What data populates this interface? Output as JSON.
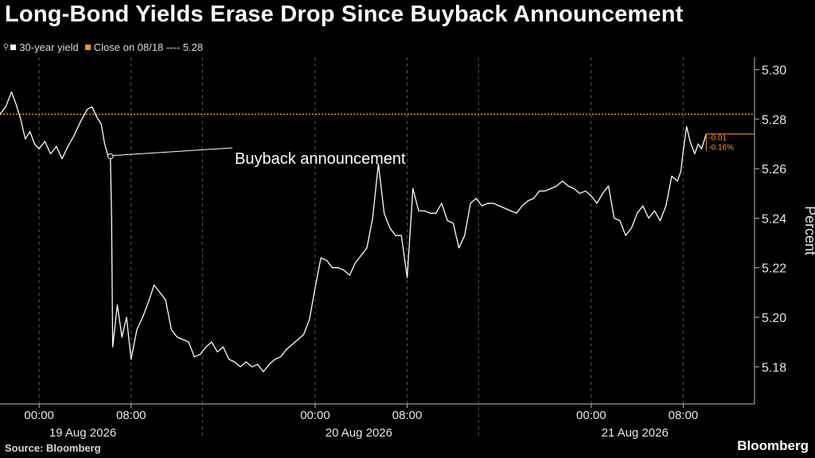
{
  "title": "Long-Bond Yields Erase Drop Since Buyback Announcement",
  "legend": {
    "series_label": "30-year yield",
    "close_label": "Close on 08/18 ---- 5.28"
  },
  "colors": {
    "series": "#ffffff",
    "close": "#f7931e",
    "grid": "#555555",
    "background": "#000000"
  },
  "icons": {
    "legend_pin": "pin-icon"
  },
  "source": "Source: Bloomberg",
  "brand": "Bloomberg",
  "chart_data": {
    "type": "line",
    "title": "Long-Bond Yields Erase Drop Since Buyback Announcement",
    "ylabel": "Percent",
    "xlabel": "",
    "ylim": [
      5.165,
      5.305
    ],
    "yticks": [
      5.18,
      5.2,
      5.22,
      5.24,
      5.26,
      5.28,
      5.3
    ],
    "ytick_labels": [
      "5.18",
      "5.20",
      "5.22",
      "5.24",
      "5.26",
      "5.28",
      "5.30"
    ],
    "x_unit": "hours since 00:00 19 Aug 2026",
    "xlim": [
      -3.4,
      62.2
    ],
    "xticks": [
      0,
      8,
      24,
      32,
      48,
      56
    ],
    "xtick_labels": [
      "00:00",
      "08:00",
      "00:00",
      "08:00",
      "00:00",
      "08:00"
    ],
    "date_labels": [
      {
        "x": 3.8,
        "label": "19 Aug 2026"
      },
      {
        "x": 27.8,
        "label": "20 Aug 2026"
      },
      {
        "x": 51.8,
        "label": "21 Aug 2026"
      }
    ],
    "day_separators": [
      14.2,
      38.2
    ],
    "reference_line": {
      "name": "Close on 08/18",
      "value": 5.282
    },
    "annotations": [
      {
        "text": "Buyback announcement",
        "x": 5.4,
        "y": 5.265
      }
    ],
    "end_labels": [
      "-0.01",
      "-0.16%"
    ],
    "series": [
      {
        "name": "30-year yield",
        "points": [
          [
            -3.4,
            5.282
          ],
          [
            -2.9,
            5.285
          ],
          [
            -2.4,
            5.291
          ],
          [
            -2.0,
            5.286
          ],
          [
            -1.6,
            5.28
          ],
          [
            -1.2,
            5.272
          ],
          [
            -0.8,
            5.275
          ],
          [
            -0.4,
            5.27
          ],
          [
            0.0,
            5.268
          ],
          [
            0.5,
            5.271
          ],
          [
            1.0,
            5.266
          ],
          [
            1.5,
            5.269
          ],
          [
            2.0,
            5.264
          ],
          [
            2.5,
            5.269
          ],
          [
            3.0,
            5.273
          ],
          [
            3.6,
            5.279
          ],
          [
            4.2,
            5.284
          ],
          [
            4.6,
            5.285
          ],
          [
            5.0,
            5.281
          ],
          [
            5.4,
            5.278
          ],
          [
            5.7,
            5.27
          ],
          [
            6.0,
            5.265
          ],
          [
            6.2,
            5.265
          ],
          [
            6.3,
            5.24
          ],
          [
            6.4,
            5.188
          ],
          [
            6.8,
            5.205
          ],
          [
            7.2,
            5.192
          ],
          [
            7.6,
            5.2
          ],
          [
            8.0,
            5.183
          ],
          [
            8.5,
            5.195
          ],
          [
            9.0,
            5.2
          ],
          [
            9.5,
            5.206
          ],
          [
            10.0,
            5.213
          ],
          [
            10.5,
            5.21
          ],
          [
            11.0,
            5.207
          ],
          [
            11.5,
            5.195
          ],
          [
            12.0,
            5.192
          ],
          [
            12.5,
            5.191
          ],
          [
            13.0,
            5.19
          ],
          [
            13.5,
            5.184
          ],
          [
            14.0,
            5.185
          ],
          [
            14.5,
            5.188
          ],
          [
            15.0,
            5.19
          ],
          [
            15.5,
            5.186
          ],
          [
            16.0,
            5.188
          ],
          [
            16.5,
            5.183
          ],
          [
            17.0,
            5.182
          ],
          [
            17.5,
            5.18
          ],
          [
            18.0,
            5.182
          ],
          [
            18.5,
            5.18
          ],
          [
            19.0,
            5.181
          ],
          [
            19.5,
            5.178
          ],
          [
            20.0,
            5.181
          ],
          [
            20.5,
            5.183
          ],
          [
            21.0,
            5.184
          ],
          [
            21.5,
            5.187
          ],
          [
            22.0,
            5.189
          ],
          [
            22.5,
            5.191
          ],
          [
            23.0,
            5.193
          ],
          [
            23.5,
            5.199
          ],
          [
            24.0,
            5.212
          ],
          [
            24.5,
            5.224
          ],
          [
            25.0,
            5.223
          ],
          [
            25.5,
            5.22
          ],
          [
            26.0,
            5.22
          ],
          [
            26.5,
            5.219
          ],
          [
            27.0,
            5.217
          ],
          [
            27.5,
            5.222
          ],
          [
            28.0,
            5.225
          ],
          [
            28.5,
            5.228
          ],
          [
            29.0,
            5.24
          ],
          [
            29.5,
            5.262
          ],
          [
            30.0,
            5.242
          ],
          [
            30.5,
            5.236
          ],
          [
            31.0,
            5.233
          ],
          [
            31.5,
            5.233
          ],
          [
            32.0,
            5.216
          ],
          [
            32.5,
            5.252
          ],
          [
            33.0,
            5.243
          ],
          [
            33.5,
            5.243
          ],
          [
            34.0,
            5.242
          ],
          [
            34.5,
            5.242
          ],
          [
            35.0,
            5.246
          ],
          [
            35.5,
            5.239
          ],
          [
            36.0,
            5.238
          ],
          [
            36.5,
            5.228
          ],
          [
            37.0,
            5.233
          ],
          [
            37.5,
            5.246
          ],
          [
            38.0,
            5.248
          ],
          [
            38.5,
            5.245
          ],
          [
            39.0,
            5.246
          ],
          [
            39.5,
            5.246
          ],
          [
            40.0,
            5.245
          ],
          [
            40.5,
            5.244
          ],
          [
            41.0,
            5.243
          ],
          [
            41.5,
            5.242
          ],
          [
            42.0,
            5.245
          ],
          [
            42.5,
            5.247
          ],
          [
            43.0,
            5.248
          ],
          [
            43.5,
            5.251
          ],
          [
            44.0,
            5.251
          ],
          [
            44.5,
            5.252
          ],
          [
            45.0,
            5.253
          ],
          [
            45.5,
            5.255
          ],
          [
            46.0,
            5.253
          ],
          [
            46.5,
            5.252
          ],
          [
            47.0,
            5.25
          ],
          [
            47.5,
            5.251
          ],
          [
            48.0,
            5.249
          ],
          [
            48.5,
            5.246
          ],
          [
            49.0,
            5.25
          ],
          [
            49.5,
            5.253
          ],
          [
            50.0,
            5.24
          ],
          [
            50.5,
            5.239
          ],
          [
            51.0,
            5.233
          ],
          [
            51.5,
            5.236
          ],
          [
            52.0,
            5.242
          ],
          [
            52.5,
            5.245
          ],
          [
            53.0,
            5.24
          ],
          [
            53.5,
            5.243
          ],
          [
            54.0,
            5.239
          ],
          [
            54.5,
            5.245
          ],
          [
            55.0,
            5.257
          ],
          [
            55.5,
            5.255
          ],
          [
            55.8,
            5.259
          ],
          [
            56.0,
            5.267
          ],
          [
            56.3,
            5.277
          ],
          [
            56.6,
            5.271
          ],
          [
            57.0,
            5.266
          ],
          [
            57.3,
            5.27
          ],
          [
            57.6,
            5.268
          ],
          [
            58.0,
            5.274
          ]
        ]
      }
    ]
  }
}
